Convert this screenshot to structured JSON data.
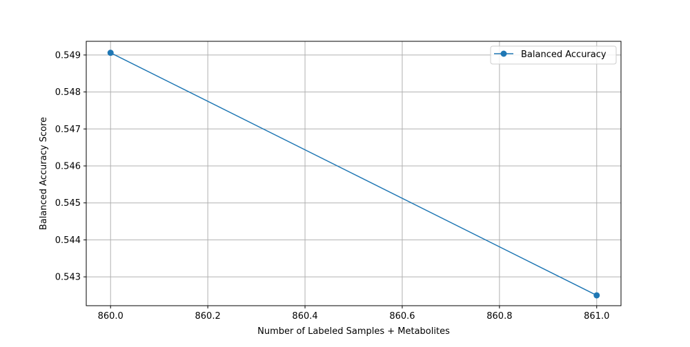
{
  "chart_data": {
    "type": "line",
    "title": "",
    "xlabel": "Number of Labeled Samples + Metabolites",
    "ylabel": "Balanced Accuracy Score",
    "xlim": [
      859.95,
      861.05
    ],
    "ylim": [
      0.54222,
      0.54937
    ],
    "xticks": [
      "860.0",
      "860.2",
      "860.4",
      "860.6",
      "860.8",
      "861.0"
    ],
    "xtick_values": [
      860.0,
      860.2,
      860.4,
      860.6,
      860.8,
      861.0
    ],
    "yticks": [
      "0.543",
      "0.544",
      "0.545",
      "0.546",
      "0.547",
      "0.548",
      "0.549"
    ],
    "ytick_values": [
      0.543,
      0.544,
      0.545,
      0.546,
      0.547,
      0.548,
      0.549
    ],
    "grid": true,
    "legend_position": "top-right",
    "series": [
      {
        "name": "Balanced Accuracy",
        "color": "#1f77b4",
        "marker": "circle",
        "x": [
          860.0,
          861.0
        ],
        "y": [
          0.54906,
          0.5425
        ]
      }
    ]
  }
}
